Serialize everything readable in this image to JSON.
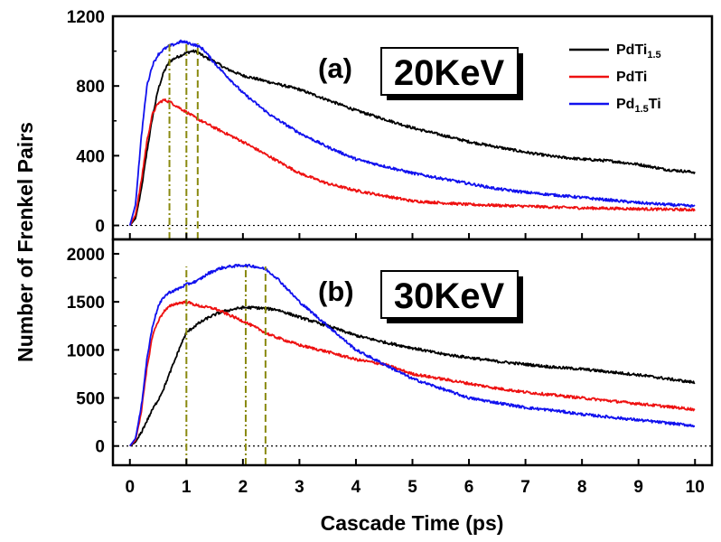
{
  "chart_data": {
    "type": "line",
    "xlabel": "Cascade Time (ps)",
    "ylabel": "Number of Frenkel Pairs",
    "xlim": [
      -0.3,
      10.3
    ],
    "xticks": [
      "0",
      "1",
      "2",
      "3",
      "4",
      "5",
      "6",
      "7",
      "8",
      "9",
      "10"
    ],
    "legend": {
      "placement": "top-right",
      "entries": [
        {
          "base": "PdTi",
          "sub": "1.5",
          "tail": "",
          "color": "#000000"
        },
        {
          "base": "PdTi",
          "sub": "",
          "tail": "",
          "color": "#ee1111"
        },
        {
          "base": "Pd",
          "sub": "1.5",
          "tail": "Ti",
          "color": "#1111ee"
        }
      ]
    },
    "panels": [
      {
        "label": "(a)",
        "energy": "20KeV",
        "ylim": [
          -80,
          1200
        ],
        "yticks": [
          "0",
          "400",
          "800",
          "1200"
        ],
        "peak_markers": [
          0.7,
          1.0,
          1.2
        ],
        "series": [
          {
            "name": "PdTi1.5",
            "color": "#000000",
            "x": [
              0,
              0.1,
              0.2,
              0.3,
              0.4,
              0.5,
              0.6,
              0.7,
              0.8,
              0.9,
              1.0,
              1.1,
              1.2,
              1.3,
              1.5,
              1.7,
              2.0,
              2.5,
              3.0,
              3.5,
              4.0,
              4.5,
              5.0,
              5.5,
              6.0,
              6.5,
              7.0,
              7.5,
              8.0,
              8.5,
              9.0,
              9.5,
              10.0
            ],
            "y": [
              0,
              40,
              200,
              420,
              620,
              780,
              880,
              940,
              960,
              975,
              990,
              1000,
              995,
              970,
              940,
              900,
              860,
              820,
              780,
              720,
              660,
              610,
              560,
              520,
              480,
              450,
              420,
              395,
              380,
              370,
              350,
              320,
              305
            ]
          },
          {
            "name": "PdTi",
            "color": "#ee1111",
            "x": [
              0,
              0.1,
              0.2,
              0.3,
              0.4,
              0.5,
              0.6,
              0.7,
              0.8,
              0.9,
              1.0,
              1.2,
              1.5,
              2.0,
              2.5,
              3.0,
              3.5,
              4.0,
              4.5,
              5.0,
              5.5,
              6.0,
              6.5,
              7.0,
              7.5,
              8.0,
              8.5,
              9.0,
              9.5,
              10.0
            ],
            "y": [
              0,
              60,
              250,
              480,
              640,
              700,
              720,
              710,
              690,
              670,
              650,
              610,
              560,
              480,
              390,
              300,
              240,
              200,
              170,
              140,
              130,
              120,
              115,
              110,
              105,
              100,
              98,
              95,
              92,
              90
            ]
          },
          {
            "name": "Pd1.5Ti",
            "color": "#1111ee",
            "x": [
              0,
              0.1,
              0.2,
              0.3,
              0.4,
              0.5,
              0.6,
              0.7,
              0.8,
              0.9,
              1.0,
              1.1,
              1.2,
              1.3,
              1.5,
              2.0,
              2.5,
              3.0,
              3.5,
              4.0,
              4.5,
              5.0,
              5.5,
              6.0,
              6.5,
              7.0,
              7.5,
              8.0,
              8.5,
              9.0,
              9.5,
              10.0
            ],
            "y": [
              0,
              120,
              500,
              800,
              920,
              980,
              1010,
              1030,
              1040,
              1055,
              1050,
              1040,
              1030,
              1010,
              930,
              760,
              630,
              530,
              450,
              380,
              340,
              300,
              270,
              240,
              210,
              190,
              175,
              160,
              145,
              130,
              120,
              110
            ]
          }
        ]
      },
      {
        "label": "(b)",
        "energy": "30KeV",
        "ylim": [
          -200,
          2150
        ],
        "yticks": [
          "0",
          "500",
          "1000",
          "1500",
          "2000"
        ],
        "peak_markers": [
          1.0,
          2.05,
          2.4
        ],
        "series": [
          {
            "name": "PdTi1.5",
            "color": "#000000",
            "x": [
              0,
              0.1,
              0.2,
              0.3,
              0.4,
              0.5,
              0.6,
              0.7,
              0.8,
              0.9,
              1.0,
              1.2,
              1.4,
              1.6,
              1.8,
              2.0,
              2.2,
              2.4,
              2.6,
              3.0,
              3.5,
              4.0,
              4.5,
              5.0,
              5.5,
              6.0,
              6.5,
              7.0,
              7.5,
              8.0,
              8.5,
              9.0,
              9.5,
              10.0
            ],
            "y": [
              0,
              40,
              140,
              260,
              380,
              480,
              600,
              750,
              900,
              1050,
              1180,
              1270,
              1340,
              1390,
              1420,
              1440,
              1440,
              1430,
              1420,
              1340,
              1250,
              1150,
              1080,
              1020,
              960,
              920,
              880,
              850,
              820,
              800,
              770,
              740,
              700,
              660
            ]
          },
          {
            "name": "PdTi",
            "color": "#ee1111",
            "x": [
              0,
              0.1,
              0.2,
              0.3,
              0.4,
              0.5,
              0.6,
              0.7,
              0.8,
              0.9,
              1.0,
              1.2,
              1.5,
              2.0,
              2.5,
              3.0,
              3.5,
              4.0,
              4.5,
              5.0,
              5.5,
              6.0,
              6.5,
              7.0,
              7.5,
              8.0,
              8.5,
              9.0,
              9.5,
              10.0
            ],
            "y": [
              0,
              60,
              350,
              800,
              1150,
              1300,
              1400,
              1450,
              1480,
              1490,
              1500,
              1460,
              1430,
              1300,
              1150,
              1050,
              980,
              900,
              850,
              750,
              700,
              650,
              600,
              560,
              530,
              500,
              470,
              440,
              410,
              380
            ]
          },
          {
            "name": "Pd1.5Ti",
            "color": "#1111ee",
            "x": [
              0,
              0.1,
              0.2,
              0.3,
              0.4,
              0.5,
              0.6,
              0.7,
              0.8,
              0.9,
              1.0,
              1.2,
              1.4,
              1.6,
              1.8,
              2.0,
              2.2,
              2.4,
              2.6,
              3.0,
              3.5,
              4.0,
              4.5,
              5.0,
              5.5,
              6.0,
              6.5,
              7.0,
              7.5,
              8.0,
              8.5,
              9.0,
              9.5,
              10.0
            ],
            "y": [
              0,
              80,
              400,
              900,
              1250,
              1450,
              1550,
              1600,
              1620,
              1650,
              1680,
              1720,
              1800,
              1850,
              1870,
              1880,
              1870,
              1840,
              1750,
              1500,
              1250,
              1000,
              850,
              700,
              600,
              500,
              450,
              400,
              370,
              330,
              300,
              270,
              240,
              210
            ]
          }
        ]
      }
    ]
  }
}
